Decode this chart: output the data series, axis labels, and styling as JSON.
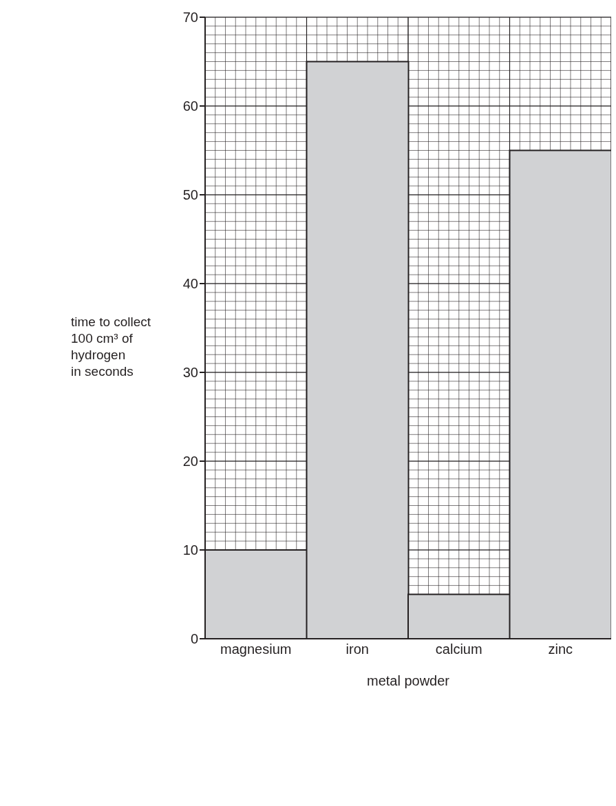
{
  "chart_data": {
    "type": "bar",
    "xlabel": "metal powder",
    "ylabel": "time to collect\n100 cm³ of\nhydrogen\nin seconds",
    "categories": [
      "magnesium",
      "iron",
      "calcium",
      "zinc"
    ],
    "values": [
      10,
      65,
      5,
      55
    ],
    "color": "#d1d2d4",
    "ylim": [
      0,
      70
    ],
    "yticks": [
      0,
      10,
      20,
      30,
      40,
      50,
      60,
      70
    ],
    "grid": true
  }
}
